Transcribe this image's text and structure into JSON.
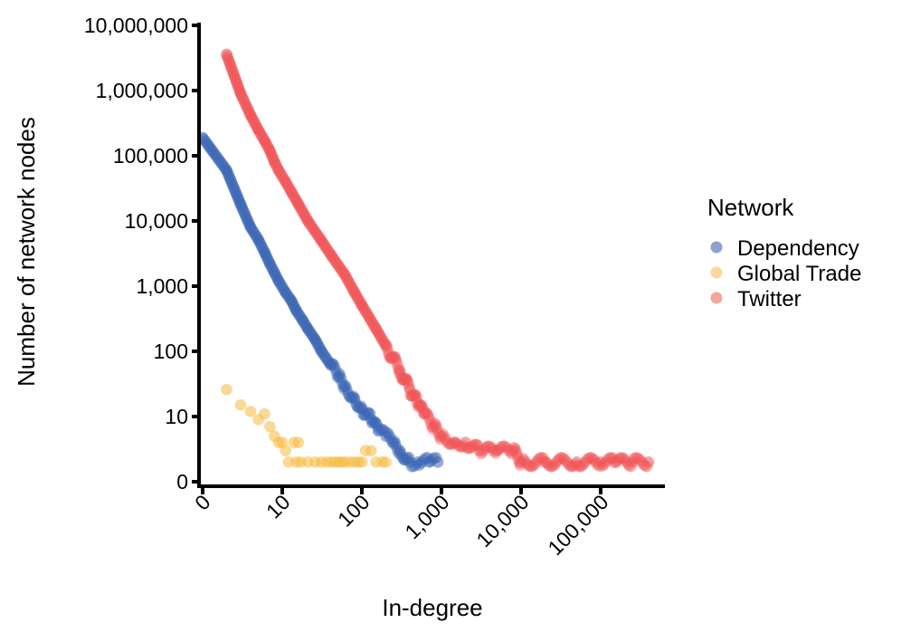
{
  "chart_data": {
    "type": "scatter",
    "title": "",
    "xlabel": "In-degree",
    "ylabel": "Number of network nodes",
    "x_scale": "pseudo-log10 (log10(x+1))",
    "y_scale": "pseudo-log10 (log10(y+1))",
    "x_ticks": [
      "0",
      "10",
      "100",
      "1,000",
      "10,000",
      "100,000"
    ],
    "y_ticks": [
      "0",
      "10",
      "100",
      "1,000",
      "10,000",
      "100,000",
      "1,000,000",
      "10,000,000"
    ],
    "xlim": [
      0,
      500000
    ],
    "ylim": [
      0,
      10000000
    ],
    "grid": false,
    "legend": {
      "title": "Network",
      "position": "right",
      "entries": [
        {
          "name": "Dependency",
          "color": "#8f9fd2"
        },
        {
          "name": "Global Trade",
          "color": "#fbd79a"
        },
        {
          "name": "Twitter",
          "color": "#f4a59c"
        }
      ]
    },
    "series": [
      {
        "name": "Dependency",
        "color": "#3d66b5",
        "description": "Power-law decay from ~200,000 nodes at in-degree 0 to single nodes around in-degree ~500",
        "points": [
          [
            0,
            190000
          ],
          [
            1,
            60000
          ],
          [
            2,
            18000
          ],
          [
            3,
            8000
          ],
          [
            4,
            5200
          ],
          [
            5,
            3300
          ],
          [
            6,
            2200
          ],
          [
            7,
            1600
          ],
          [
            8,
            1200
          ],
          [
            10,
            800
          ],
          [
            12,
            600
          ],
          [
            14,
            420
          ],
          [
            17,
            300
          ],
          [
            20,
            220
          ],
          [
            25,
            150
          ],
          [
            30,
            100
          ],
          [
            40,
            60
          ],
          [
            50,
            40
          ],
          [
            60,
            28
          ],
          [
            80,
            18
          ],
          [
            100,
            12
          ],
          [
            130,
            8
          ],
          [
            160,
            5
          ],
          [
            200,
            4
          ],
          [
            250,
            3
          ],
          [
            300,
            2
          ],
          [
            400,
            1
          ],
          [
            500,
            1
          ],
          [
            700,
            1
          ],
          [
            900,
            1
          ]
        ]
      },
      {
        "name": "Global Trade",
        "color": "#f5b940",
        "description": "Few nodes (max ~25) spread over in-degree 1–200",
        "points": [
          [
            1,
            25
          ],
          [
            2,
            14
          ],
          [
            3,
            11
          ],
          [
            4,
            8
          ],
          [
            5,
            10
          ],
          [
            6,
            6
          ],
          [
            7,
            4
          ],
          [
            8,
            3
          ],
          [
            9,
            3
          ],
          [
            10,
            2
          ],
          [
            11,
            1
          ],
          [
            13,
            3
          ],
          [
            14,
            1
          ],
          [
            15,
            3
          ],
          [
            16,
            1
          ],
          [
            20,
            1
          ],
          [
            25,
            1
          ],
          [
            30,
            1
          ],
          [
            35,
            1
          ],
          [
            40,
            1
          ],
          [
            45,
            1
          ],
          [
            50,
            1
          ],
          [
            55,
            1
          ],
          [
            60,
            1
          ],
          [
            70,
            1
          ],
          [
            80,
            1
          ],
          [
            90,
            1
          ],
          [
            100,
            1
          ],
          [
            110,
            2
          ],
          [
            130,
            2
          ],
          [
            150,
            1
          ],
          [
            180,
            1
          ],
          [
            200,
            1
          ]
        ]
      },
      {
        "name": "Twitter",
        "color": "#f0565a",
        "description": "Power-law decay from ~3,600,000 nodes at in-degree 1 to single nodes up to ~400,000 in-degree",
        "points": [
          [
            1,
            3600000
          ],
          [
            2,
            900000
          ],
          [
            3,
            420000
          ],
          [
            4,
            250000
          ],
          [
            5,
            170000
          ],
          [
            6,
            120000
          ],
          [
            7,
            80000
          ],
          [
            8,
            60000
          ],
          [
            10,
            40000
          ],
          [
            12,
            28000
          ],
          [
            15,
            18000
          ],
          [
            20,
            10000
          ],
          [
            30,
            5000
          ],
          [
            40,
            3000
          ],
          [
            60,
            1500
          ],
          [
            80,
            800
          ],
          [
            100,
            500
          ],
          [
            150,
            220
          ],
          [
            200,
            120
          ],
          [
            300,
            50
          ],
          [
            400,
            25
          ],
          [
            500,
            15
          ],
          [
            600,
            10
          ],
          [
            800,
            6
          ],
          [
            1000,
            4
          ],
          [
            1500,
            3
          ],
          [
            2000,
            3
          ],
          [
            3000,
            2
          ],
          [
            5000,
            2
          ],
          [
            8000,
            2
          ],
          [
            10000,
            1
          ],
          [
            20000,
            1
          ],
          [
            50000,
            1
          ],
          [
            100000,
            1
          ],
          [
            150000,
            1
          ],
          [
            250000,
            1
          ],
          [
            400000,
            1
          ]
        ]
      }
    ]
  }
}
